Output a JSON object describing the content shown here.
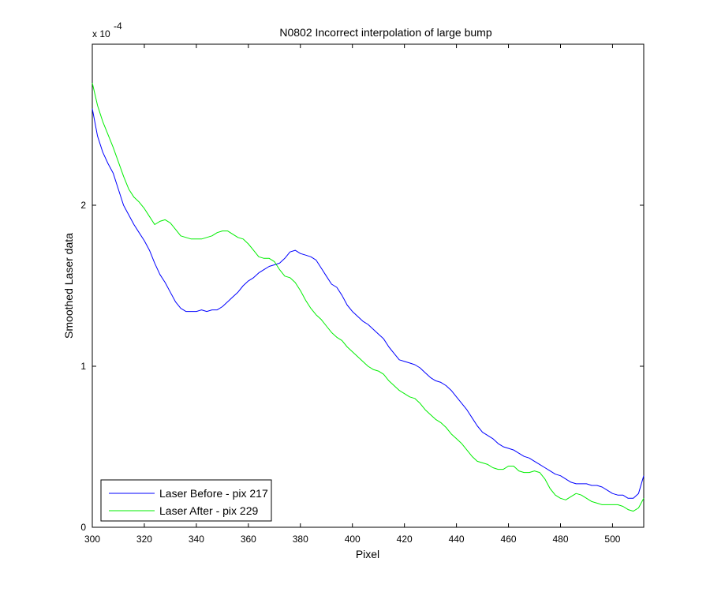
{
  "chart_data": {
    "type": "line",
    "title": "N0802   Incorrect interpolation of large bump",
    "xlabel": "Pixel",
    "ylabel": "Smoothed Laser data",
    "y_multiplier_base": "x 10",
    "y_multiplier_exponent": "-4",
    "xlim": [
      300,
      512
    ],
    "ylim": [
      0,
      3.0
    ],
    "x_ticks": [
      300,
      320,
      340,
      360,
      380,
      400,
      420,
      440,
      460,
      480,
      500
    ],
    "y_ticks": [
      0,
      1,
      2
    ],
    "legend_position": "bottom-left",
    "grid": false,
    "series": [
      {
        "name": "Laser Before - pix 217",
        "color": "#0000ff",
        "x": [
          300,
          302,
          304,
          306,
          308,
          310,
          312,
          314,
          316,
          318,
          320,
          322,
          324,
          326,
          328,
          330,
          332,
          334,
          336,
          338,
          340,
          342,
          344,
          346,
          348,
          350,
          352,
          354,
          356,
          358,
          360,
          362,
          364,
          366,
          368,
          370,
          372,
          374,
          376,
          378,
          380,
          382,
          384,
          386,
          388,
          390,
          392,
          394,
          396,
          398,
          400,
          402,
          404,
          406,
          408,
          410,
          412,
          414,
          416,
          418,
          420,
          422,
          424,
          426,
          428,
          430,
          432,
          434,
          436,
          438,
          440,
          442,
          444,
          446,
          448,
          450,
          452,
          454,
          456,
          458,
          460,
          462,
          464,
          466,
          468,
          470,
          472,
          474,
          476,
          478,
          480,
          482,
          484,
          486,
          488,
          490,
          492,
          494,
          496,
          498,
          500,
          502,
          504,
          506,
          508,
          510,
          512
        ],
        "values": [
          2.6,
          2.43,
          2.33,
          2.26,
          2.2,
          2.1,
          2.0,
          1.94,
          1.88,
          1.83,
          1.78,
          1.72,
          1.64,
          1.57,
          1.52,
          1.46,
          1.4,
          1.36,
          1.34,
          1.34,
          1.34,
          1.35,
          1.34,
          1.35,
          1.35,
          1.37,
          1.4,
          1.43,
          1.46,
          1.5,
          1.53,
          1.55,
          1.58,
          1.6,
          1.62,
          1.63,
          1.64,
          1.67,
          1.71,
          1.72,
          1.7,
          1.69,
          1.68,
          1.66,
          1.61,
          1.56,
          1.51,
          1.49,
          1.44,
          1.38,
          1.34,
          1.31,
          1.28,
          1.26,
          1.23,
          1.2,
          1.17,
          1.12,
          1.08,
          1.04,
          1.03,
          1.02,
          1.01,
          0.99,
          0.96,
          0.93,
          0.91,
          0.9,
          0.88,
          0.85,
          0.81,
          0.77,
          0.73,
          0.68,
          0.63,
          0.59,
          0.57,
          0.55,
          0.52,
          0.5,
          0.49,
          0.48,
          0.46,
          0.44,
          0.43,
          0.41,
          0.39,
          0.37,
          0.35,
          0.33,
          0.32,
          0.3,
          0.28,
          0.27,
          0.27,
          0.27,
          0.26,
          0.26,
          0.25,
          0.23,
          0.21,
          0.2,
          0.2,
          0.18,
          0.18,
          0.21,
          0.32
        ]
      },
      {
        "name": "Laser After - pix 229",
        "color": "#00ee00",
        "x": [
          300,
          302,
          304,
          306,
          308,
          310,
          312,
          314,
          316,
          318,
          320,
          322,
          324,
          326,
          328,
          330,
          332,
          334,
          336,
          338,
          340,
          342,
          344,
          346,
          348,
          350,
          352,
          354,
          356,
          358,
          360,
          362,
          364,
          366,
          368,
          370,
          372,
          374,
          376,
          378,
          380,
          382,
          384,
          386,
          388,
          390,
          392,
          394,
          396,
          398,
          400,
          402,
          404,
          406,
          408,
          410,
          412,
          414,
          416,
          418,
          420,
          422,
          424,
          426,
          428,
          430,
          432,
          434,
          436,
          438,
          440,
          442,
          444,
          446,
          448,
          450,
          452,
          454,
          456,
          458,
          460,
          462,
          464,
          466,
          468,
          470,
          472,
          474,
          476,
          478,
          480,
          482,
          484,
          486,
          488,
          490,
          492,
          494,
          496,
          498,
          500,
          502,
          504,
          506,
          508,
          510,
          512
        ],
        "values": [
          2.76,
          2.62,
          2.52,
          2.44,
          2.36,
          2.27,
          2.18,
          2.1,
          2.05,
          2.02,
          1.98,
          1.93,
          1.88,
          1.9,
          1.91,
          1.89,
          1.85,
          1.81,
          1.8,
          1.79,
          1.79,
          1.79,
          1.8,
          1.81,
          1.83,
          1.84,
          1.84,
          1.82,
          1.8,
          1.79,
          1.76,
          1.72,
          1.68,
          1.67,
          1.67,
          1.65,
          1.6,
          1.56,
          1.55,
          1.52,
          1.47,
          1.41,
          1.36,
          1.32,
          1.29,
          1.25,
          1.21,
          1.18,
          1.16,
          1.12,
          1.09,
          1.06,
          1.03,
          1.0,
          0.98,
          0.97,
          0.95,
          0.91,
          0.88,
          0.85,
          0.83,
          0.81,
          0.8,
          0.77,
          0.73,
          0.7,
          0.67,
          0.65,
          0.62,
          0.58,
          0.55,
          0.52,
          0.48,
          0.44,
          0.41,
          0.4,
          0.39,
          0.37,
          0.36,
          0.36,
          0.38,
          0.38,
          0.35,
          0.34,
          0.34,
          0.35,
          0.34,
          0.3,
          0.24,
          0.2,
          0.18,
          0.17,
          0.19,
          0.21,
          0.2,
          0.18,
          0.16,
          0.15,
          0.14,
          0.14,
          0.14,
          0.14,
          0.13,
          0.11,
          0.1,
          0.12,
          0.18
        ]
      }
    ]
  }
}
